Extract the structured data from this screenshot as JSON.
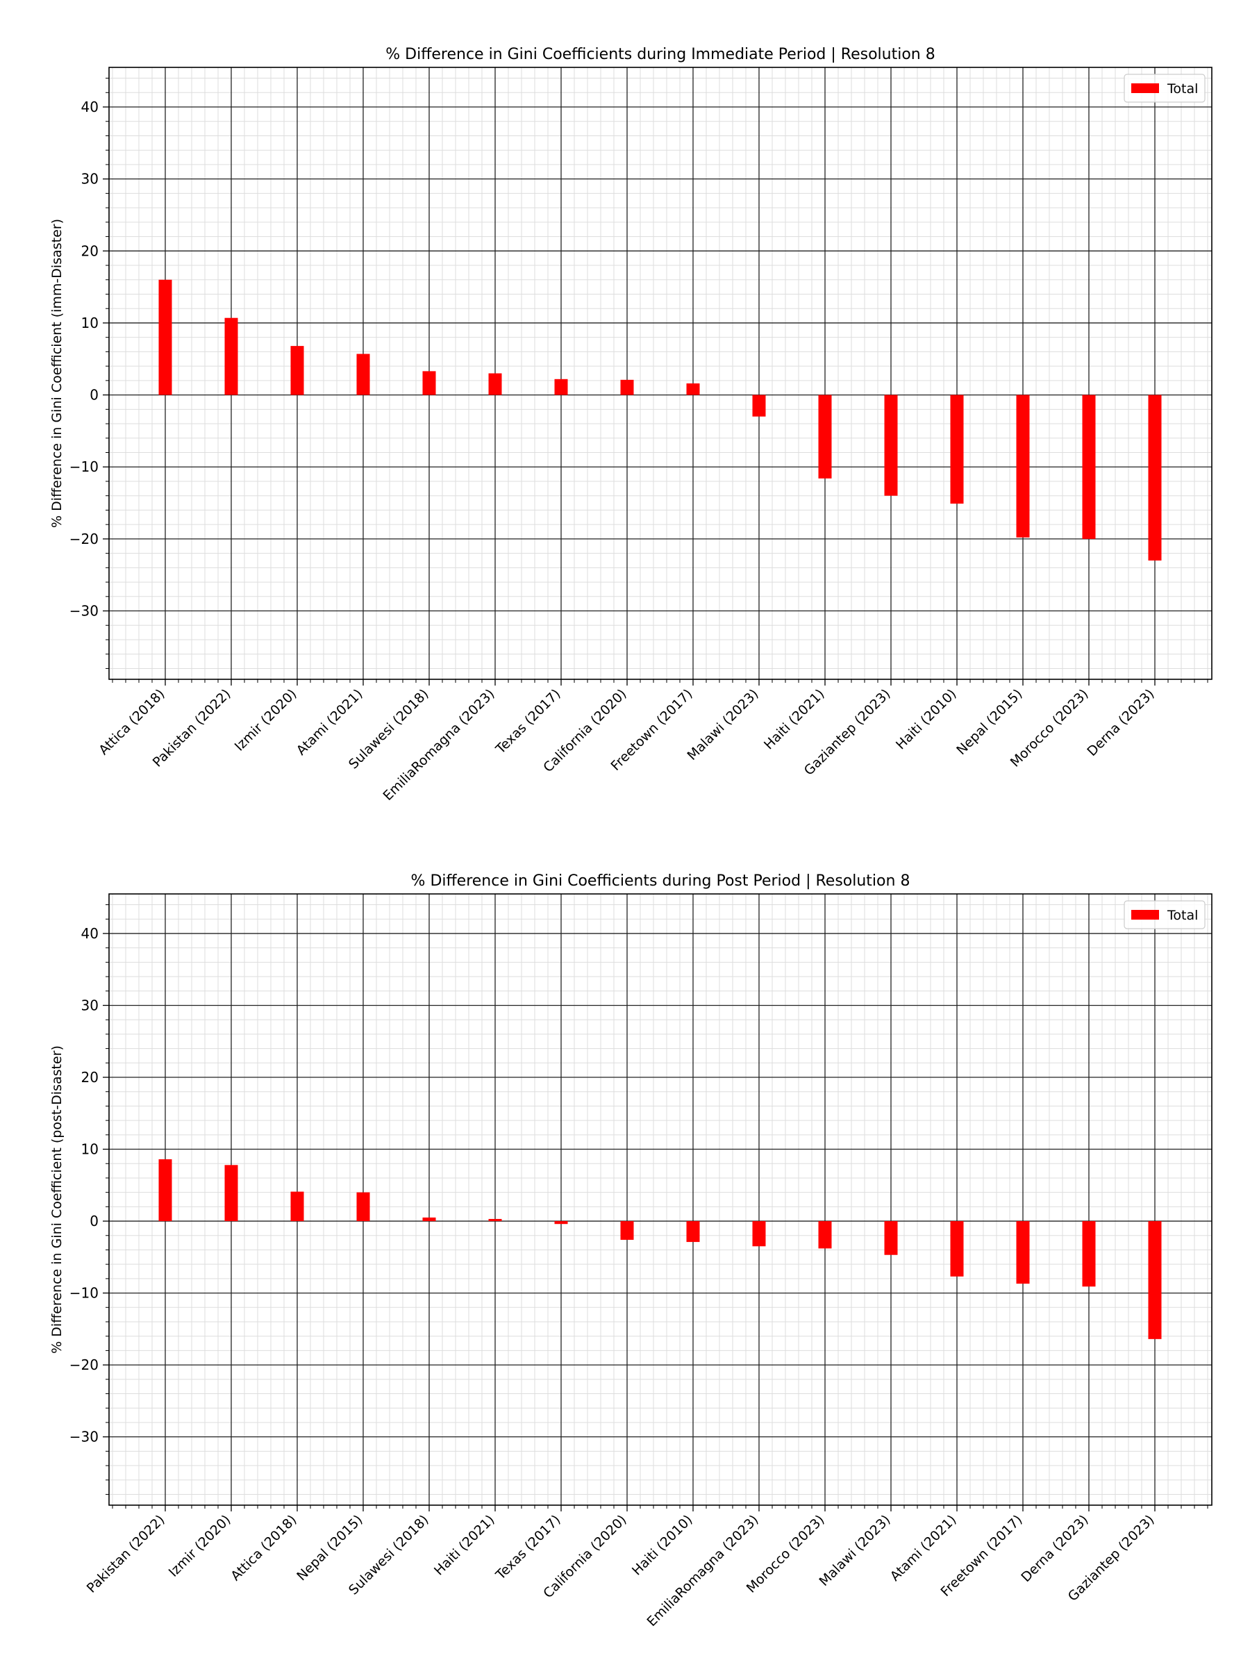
{
  "chart_data": [
    {
      "type": "bar",
      "title": "% Difference in Gini Coefficients during Immediate Period | Resolution 8",
      "xlabel": "",
      "ylabel": "% Difference in Gini Coefficient (imm-Disaster)",
      "ylim": [
        -39.5,
        45.5
      ],
      "yticks": [
        -30,
        -20,
        -10,
        0,
        10,
        20,
        30,
        40
      ],
      "grid": true,
      "legend": {
        "entries": [
          "Total"
        ],
        "placement": "top-right"
      },
      "bar_color": "#ff0000",
      "series": [
        {
          "name": "Total"
        }
      ],
      "categories": [
        "Attica (2018)",
        "Pakistan (2022)",
        "Izmir (2020)",
        "Atami (2021)",
        "Sulawesi (2018)",
        "EmiliaRomagna (2023)",
        "Texas (2017)",
        "California (2020)",
        "Freetown (2017)",
        "Malawi (2023)",
        "Haiti (2021)",
        "Gaziantep (2023)",
        "Haiti (2010)",
        "Nepal (2015)",
        "Morocco (2023)",
        "Derna (2023)"
      ],
      "values": [
        16.0,
        10.7,
        6.8,
        5.7,
        3.3,
        3.0,
        2.2,
        2.1,
        1.6,
        -3.0,
        -11.6,
        -14.0,
        -15.1,
        -19.8,
        -20.0,
        -23.0
      ]
    },
    {
      "type": "bar",
      "title": "% Difference in Gini Coefficients during Post Period | Resolution 8",
      "xlabel": "",
      "ylabel": "% Difference in Gini Coefficient (post-Disaster)",
      "ylim": [
        -39.5,
        45.5
      ],
      "yticks": [
        -30,
        -20,
        -10,
        0,
        10,
        20,
        30,
        40
      ],
      "grid": true,
      "legend": {
        "entries": [
          "Total"
        ],
        "placement": "top-right"
      },
      "bar_color": "#ff0000",
      "series": [
        {
          "name": "Total"
        }
      ],
      "categories": [
        "Pakistan (2022)",
        "Izmir (2020)",
        "Attica (2018)",
        "Nepal (2015)",
        "Sulawesi (2018)",
        "Haiti (2021)",
        "Texas (2017)",
        "California (2020)",
        "Haiti (2010)",
        "EmiliaRomagna (2023)",
        "Morocco (2023)",
        "Malawi (2023)",
        "Atami (2021)",
        "Freetown (2017)",
        "Derna (2023)",
        "Gaziantep (2023)"
      ],
      "values": [
        8.6,
        7.8,
        4.1,
        4.0,
        0.5,
        0.3,
        -0.4,
        -2.6,
        -2.9,
        -3.5,
        -3.8,
        -4.7,
        -7.7,
        -8.7,
        -9.1,
        -16.4
      ]
    }
  ]
}
